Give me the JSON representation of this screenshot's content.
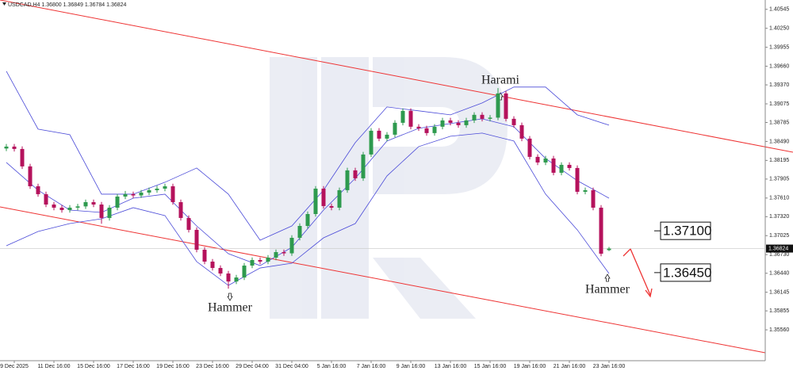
{
  "chart_data": {
    "type": "candlestick",
    "title": "USDCAD,H4  1.36800 1.36849 1.36784 1.36824",
    "categories": [
      null,
      "9 Dec 2025",
      null,
      null,
      null,
      null,
      "11 Dec 16:00",
      null,
      null,
      null,
      null,
      "15 Dec 16:00",
      null,
      null,
      null,
      null,
      "17 Dec 16:00",
      null,
      null,
      null,
      null,
      "19 Dec 16:00",
      null,
      null,
      null,
      null,
      "23 Dec 16:00",
      null,
      null,
      null,
      null,
      "29 Dec 04:00",
      null,
      null,
      null,
      null,
      "31 Dec 04:00",
      null,
      null,
      null,
      null,
      "5 Jan 16:00",
      null,
      null,
      null,
      null,
      "7 Jan 16:00",
      null,
      null,
      null,
      null,
      "9 Jan 16:00",
      null,
      null,
      null,
      null,
      "13 Jan 16:00",
      null,
      null,
      null,
      null,
      "15 Jan 16:00",
      null,
      null,
      null,
      null,
      "19 Jan 16:00",
      null,
      null,
      null,
      null,
      "21 Jan 16:00",
      null,
      null,
      null,
      null,
      "23 Jan 16:00"
    ],
    "open": [
      1.3838,
      1.3841,
      1.38373,
      1.38102,
      1.37793,
      1.3767,
      1.37509,
      1.3746,
      1.37423,
      1.3746,
      1.3748,
      1.37546,
      1.37509,
      1.373,
      1.3746,
      1.37633,
      1.3767,
      1.3765,
      1.37695,
      1.37732,
      1.37756,
      1.37793,
      1.37546,
      1.373,
      1.37115,
      1.36806,
      1.36621,
      1.36522,
      1.36436,
      1.36312,
      1.36374,
      1.36559,
      1.36646,
      1.36621,
      1.36683,
      1.36769,
      1.3675,
      1.36991,
      1.37176,
      1.37361,
      1.37756,
      1.37485,
      1.3746,
      1.37732,
      1.3804,
      1.37917,
      1.38287,
      1.38657,
      1.38534,
      1.38595,
      1.3878,
      1.38966,
      1.38719,
      1.38694,
      1.3862,
      1.38719,
      1.38817,
      1.3878,
      1.38743,
      1.38817,
      1.38904,
      1.38842,
      1.3886,
      1.39237,
      1.38842,
      1.38743,
      1.38534,
      1.3825,
      1.38163,
      1.38225,
      1.38003,
      1.38126,
      1.38077,
      1.37707,
      1.37732,
      1.3746,
      1.368
    ],
    "high": [
      1.3845,
      1.3845,
      1.38413,
      1.38142,
      1.37833,
      1.3771,
      1.37549,
      1.375,
      1.375,
      1.3752,
      1.37586,
      1.37586,
      1.37549,
      1.375,
      1.37673,
      1.3772,
      1.3771,
      1.37735,
      1.37772,
      1.378,
      1.37833,
      1.37833,
      1.37586,
      1.3734,
      1.37155,
      1.36846,
      1.36661,
      1.36562,
      1.36476,
      1.36414,
      1.36599,
      1.36686,
      1.36686,
      1.36723,
      1.36809,
      1.36809,
      1.37031,
      1.37216,
      1.37401,
      1.37796,
      1.37796,
      1.37525,
      1.37772,
      1.3808,
      1.3808,
      1.38327,
      1.38697,
      1.38697,
      1.38635,
      1.3882,
      1.39006,
      1.39006,
      1.38759,
      1.38734,
      1.38759,
      1.38857,
      1.38857,
      1.3882,
      1.38857,
      1.38944,
      1.38944,
      1.389,
      1.3932,
      1.39277,
      1.38882,
      1.38783,
      1.38574,
      1.3829,
      1.38265,
      1.38265,
      1.38166,
      1.38166,
      1.38117,
      1.37772,
      1.37772,
      1.375,
      1.36849
    ],
    "low": [
      1.3834,
      1.38333,
      1.38062,
      1.37753,
      1.3763,
      1.37469,
      1.3742,
      1.37383,
      1.37383,
      1.3742,
      1.3744,
      1.37469,
      1.3721,
      1.3726,
      1.3742,
      1.37593,
      1.3761,
      1.3761,
      1.37655,
      1.37692,
      1.37716,
      1.37506,
      1.3726,
      1.37075,
      1.36766,
      1.36581,
      1.36482,
      1.36396,
      1.362,
      1.36272,
      1.36334,
      1.36519,
      1.36581,
      1.36581,
      1.36643,
      1.3671,
      1.3671,
      1.36951,
      1.37136,
      1.37321,
      1.37445,
      1.3742,
      1.3742,
      1.37692,
      1.37877,
      1.37877,
      1.38247,
      1.38494,
      1.38494,
      1.38555,
      1.3874,
      1.38679,
      1.38654,
      1.3858,
      1.3858,
      1.38679,
      1.3874,
      1.38703,
      1.38703,
      1.38777,
      1.38802,
      1.38802,
      1.3882,
      1.38802,
      1.38703,
      1.38494,
      1.3821,
      1.38123,
      1.38123,
      1.37963,
      1.37963,
      1.38037,
      1.37667,
      1.37667,
      1.3742,
      1.36704,
      1.36784
    ],
    "close": [
      1.3841,
      1.38373,
      1.38102,
      1.37793,
      1.3767,
      1.37509,
      1.3746,
      1.37423,
      1.3746,
      1.3748,
      1.37546,
      1.37509,
      1.373,
      1.3746,
      1.37633,
      1.3767,
      1.3765,
      1.37695,
      1.37732,
      1.37756,
      1.37793,
      1.37546,
      1.373,
      1.37115,
      1.36806,
      1.36621,
      1.36522,
      1.36436,
      1.36312,
      1.36374,
      1.36559,
      1.36646,
      1.36621,
      1.36683,
      1.36769,
      1.3675,
      1.36991,
      1.37176,
      1.37361,
      1.37756,
      1.37485,
      1.3746,
      1.37732,
      1.3804,
      1.37917,
      1.38287,
      1.38657,
      1.38534,
      1.38595,
      1.3878,
      1.38966,
      1.38719,
      1.38694,
      1.3862,
      1.38719,
      1.38817,
      1.3878,
      1.38743,
      1.38817,
      1.38904,
      1.38842,
      1.3886,
      1.39237,
      1.38842,
      1.38743,
      1.38534,
      1.3825,
      1.38163,
      1.38225,
      1.38003,
      1.38126,
      1.38077,
      1.37707,
      1.37732,
      1.3746,
      1.36744,
      1.36824
    ],
    "up_color": "#2e9a4e",
    "down_color": "#b5125c",
    "bands": {
      "color": "#4a4ad8",
      "index": [
        0,
        4,
        8,
        12,
        16,
        20,
        24,
        28,
        32,
        36,
        40,
        44,
        48,
        52,
        56,
        60,
        64,
        68,
        72,
        76
      ],
      "upper": [
        1.39582,
        1.38682,
        1.38595,
        1.3767,
        1.3767,
        1.37855,
        1.38077,
        1.3767,
        1.36954,
        1.37176,
        1.37732,
        1.38472,
        1.39027,
        1.38966,
        1.38904,
        1.39089,
        1.39336,
        1.39336,
        1.38904,
        1.38743
      ],
      "middle": [
        1.38163,
        1.37732,
        1.37423,
        1.37386,
        1.37608,
        1.3767,
        1.37176,
        1.36744,
        1.36559,
        1.36843,
        1.37423,
        1.37917,
        1.38497,
        1.38694,
        1.38768,
        1.38842,
        1.38719,
        1.38225,
        1.3788,
        1.37608
      ],
      "lower": [
        1.36868,
        1.3709,
        1.37213,
        1.37287,
        1.3746,
        1.37337,
        1.36621,
        1.36251,
        1.36522,
        1.36596,
        1.36991,
        1.37213,
        1.37954,
        1.3841,
        1.38571,
        1.3862,
        1.38497,
        1.3767,
        1.37115,
        1.36436
      ]
    },
    "ylim": [
      1.3508,
      1.4069
    ],
    "yticks": [
      1.40545,
      {
        "value": 1.4025,
        "label": "1.40250"
      },
      1.39955,
      {
        "value": 1.3966,
        "label": "1.39660"
      },
      {
        "value": 1.3937,
        "label": "1.39370"
      },
      1.39075,
      1.38785,
      {
        "value": 1.3849,
        "label": "1.38490"
      },
      1.38195,
      1.37905,
      {
        "value": 1.3761,
        "label": "1.37610"
      },
      {
        "value": 1.3732,
        "label": "1.37320"
      },
      1.37025,
      {
        "value": 1.3673,
        "label": "1.36730"
      },
      {
        "value": 1.3644,
        "label": "1.36440"
      },
      1.36145,
      1.35855,
      {
        "value": 1.3556,
        "label": "1.35560"
      }
    ],
    "last_price": {
      "value": 1.36824,
      "label": "1.36824"
    },
    "levels": [
      {
        "value": 1.371,
        "label": "1.37100"
      },
      {
        "value": 1.3645,
        "label": "1.36450"
      }
    ],
    "annotations": [
      "Harami",
      "Hammer",
      "Hammer"
    ]
  }
}
